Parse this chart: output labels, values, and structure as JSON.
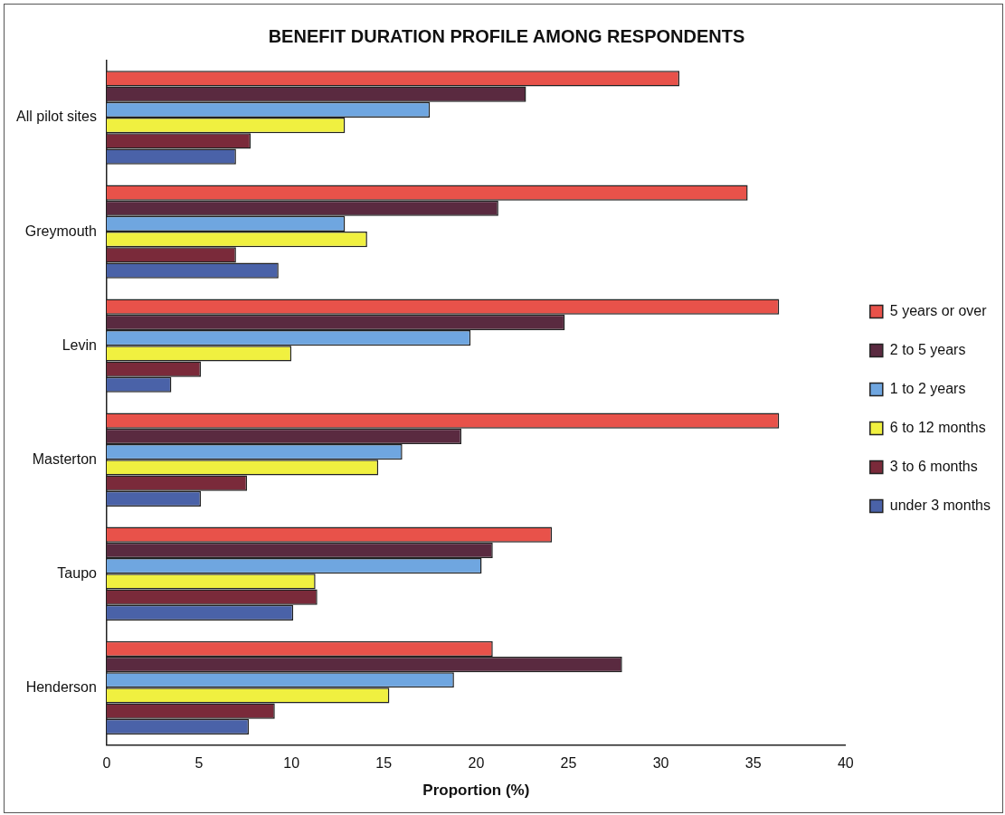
{
  "chart_data": {
    "type": "bar",
    "orientation": "horizontal",
    "title": "BENEFIT DURATION PROFILE AMONG RESPONDENTS",
    "xlabel": "Proportion (%)",
    "categories": [
      "All pilot sites",
      "Greymouth",
      "Levin",
      "Masterton",
      "Taupo",
      "Henderson"
    ],
    "series": [
      {
        "name": "5 years or over",
        "color": "#e8524a",
        "values": [
          31.0,
          34.7,
          36.4,
          36.4,
          24.1,
          20.9
        ]
      },
      {
        "name": "2 to 5 years",
        "color": "#5a2a40",
        "values": [
          22.7,
          21.2,
          24.8,
          19.2,
          20.9,
          27.9
        ]
      },
      {
        "name": "1 to 2 years",
        "color": "#6fa6e0",
        "values": [
          17.5,
          12.9,
          19.7,
          16.0,
          20.3,
          18.8
        ]
      },
      {
        "name": "6 to 12 months",
        "color": "#f0f040",
        "values": [
          12.9,
          14.1,
          10.0,
          14.7,
          11.3,
          15.3
        ]
      },
      {
        "name": "3 to 6 months",
        "color": "#7a2a3a",
        "values": [
          7.8,
          7.0,
          5.1,
          7.6,
          11.4,
          9.1
        ]
      },
      {
        "name": "under 3 months",
        "color": "#4a62a8",
        "values": [
          7.0,
          9.3,
          3.5,
          5.1,
          10.1,
          7.7
        ]
      }
    ],
    "xlim": [
      0,
      40
    ],
    "xticks": [
      0,
      5,
      10,
      15,
      20,
      25,
      30,
      35,
      40
    ],
    "grid": false,
    "legend": "right"
  }
}
